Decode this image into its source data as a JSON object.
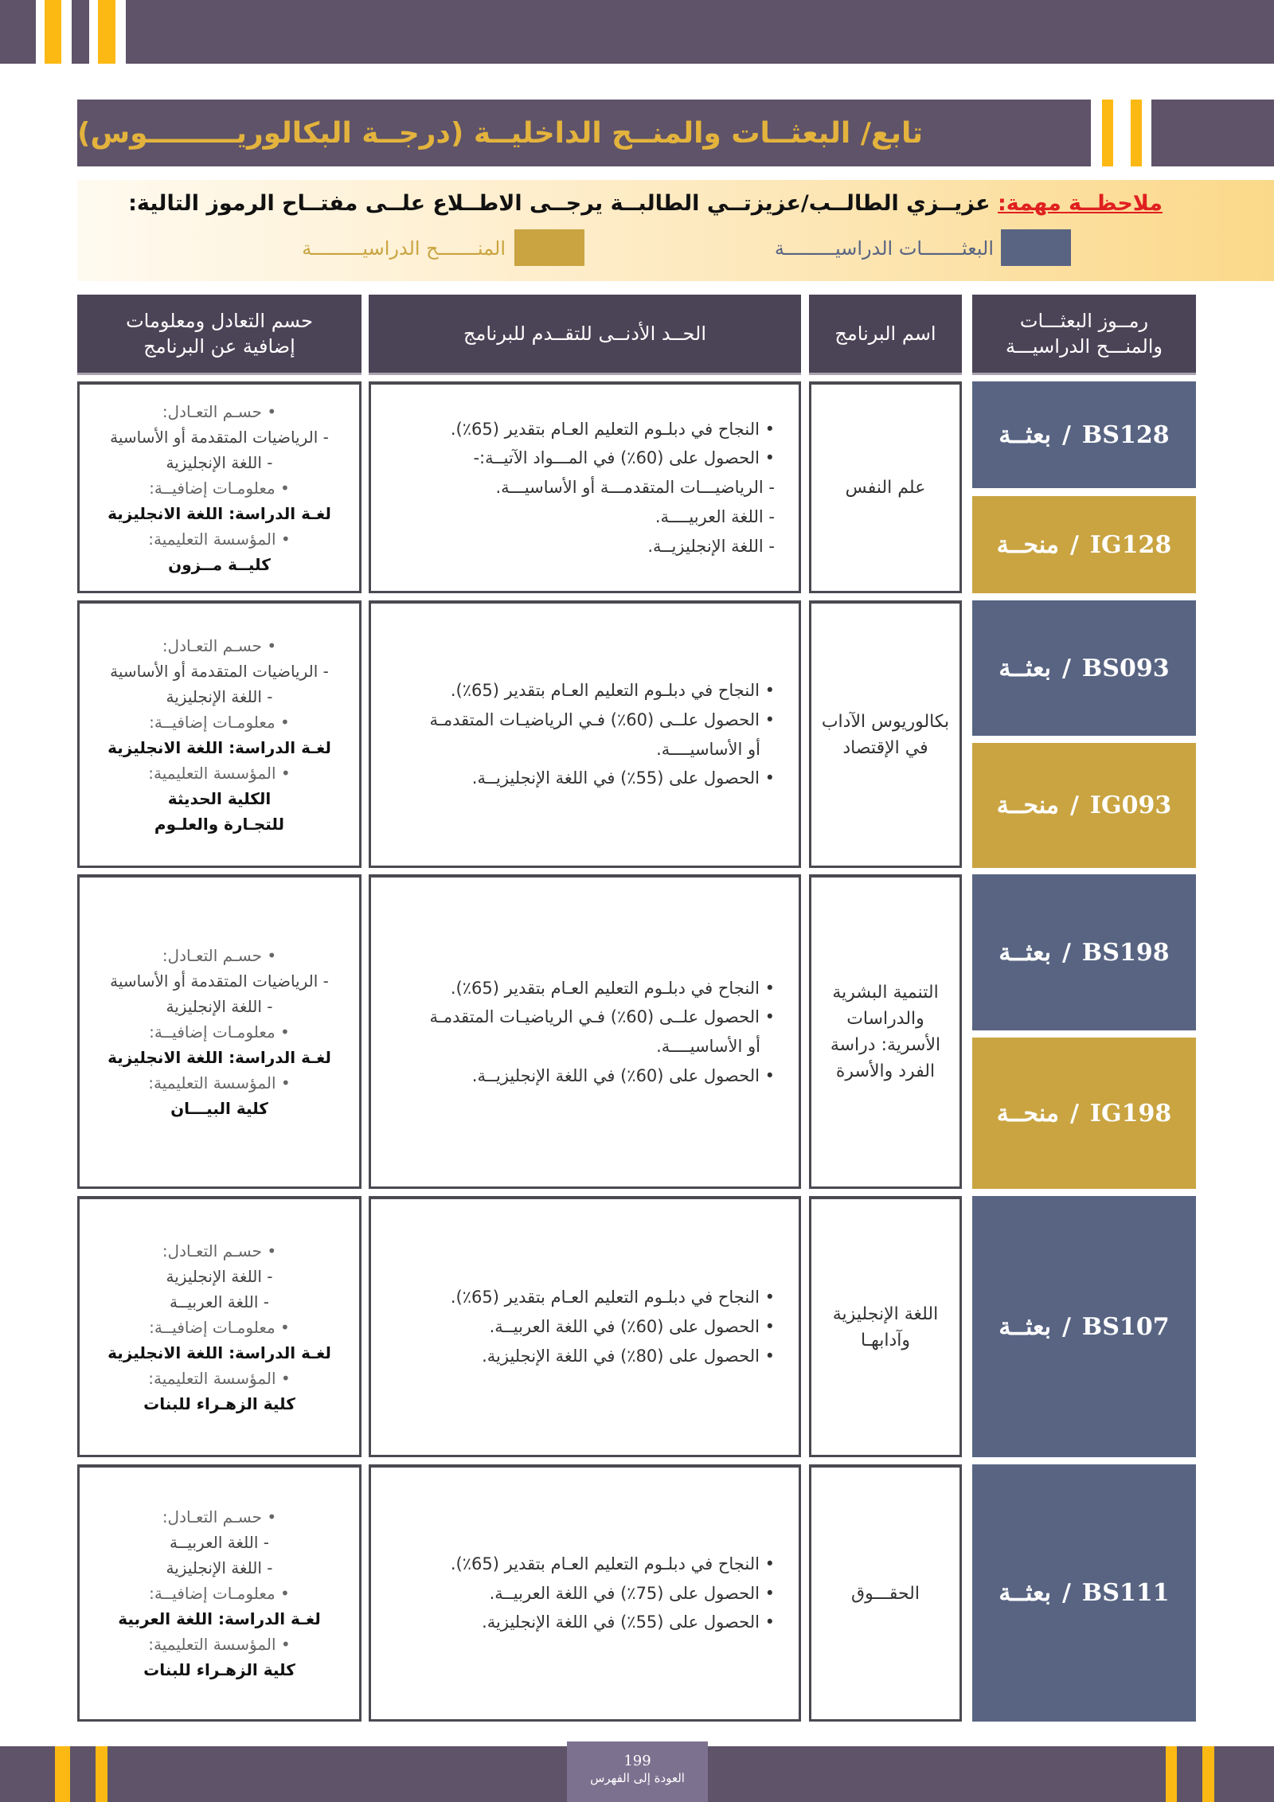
{
  "title": "تابع/ البعثــات والمنــح الداخليــة (درجــة البكالوريـــــــــوس)",
  "note": {
    "label": "ملاحظــة مهمة:",
    "text": "عزيــزي الطالــب/عزيزتــي الطالبــة يرجــى الاطــلاع علــى مفتــاح الرموز التالية:",
    "legend": [
      {
        "label": "البعثـــــــات الدراسيـــــــــة",
        "color": "#586482"
      },
      {
        "label": "المنـــــــح الدراسيـــــــــة",
        "color": "#c9a441"
      }
    ]
  },
  "colors": {
    "band": "#5e5368",
    "accent": "#fdb913",
    "scholarship": "#586482",
    "grant": "#c9a441"
  },
  "table": {
    "headers": {
      "codes": "رمــوز البعثـــات والمنـــح الدراسيـــة",
      "program": "اسم البرنامج",
      "requirements": "الحــد الأدنــى للتقــدم للبرنامج",
      "info": "حسم التعادل ومعلومات إضافية عن البرنامج"
    },
    "rows": [
      {
        "codes": [
          {
            "code": "BS128",
            "type": "بعثــة",
            "kind": "blue"
          },
          {
            "code": "IG128",
            "type": "منحــة",
            "kind": "gold"
          }
        ],
        "program": "علم النفس",
        "requirements": [
          "• النجاح في دبلـوم التعليم العـام بتقدير (65٪).",
          "• الحصول على (60٪)  في المـــواد الآتيــة:-",
          "- الرياضيـــات المتقدمـــة أو الأساسيـــة.",
          "- اللغة العربيــــة.",
          "- اللغة الإنجليزيــة."
        ],
        "info": [
          {
            "t": "• حسـم التعـادل:",
            "k": "h"
          },
          {
            "t": "- الرياضيات المتقدمة أو الأساسية",
            "k": "d"
          },
          {
            "t": "- اللغة الإنجليزية",
            "k": "d"
          },
          {
            "t": "• معلومـات إضافيــة:",
            "k": "h"
          },
          {
            "t": "لغـة الدراسة: اللغة الانجليزية",
            "k": "b"
          },
          {
            "t": "• المؤسسة التعليمية:",
            "k": "h"
          },
          {
            "t": "كليــة مــزون",
            "k": "b"
          }
        ]
      },
      {
        "codes": [
          {
            "code": "BS093",
            "type": "بعثــة",
            "kind": "blue"
          },
          {
            "code": "IG093",
            "type": "منحــة",
            "kind": "gold"
          }
        ],
        "program": "بكالوريوس الآداب في الإقتصاد",
        "requirements": [
          "• النجاح في دبلـوم التعليم العـام بتقدير (65٪).",
          "• الحصول علــى (60٪) فـي الرياضيـات المتقدمـة",
          "أو الأساسيــــة.",
          "• الحصول على (55٪) في اللغة الإنجليزيــة."
        ],
        "info": [
          {
            "t": "• حسـم التعـادل:",
            "k": "h"
          },
          {
            "t": "- الرياضيات المتقدمة أو الأساسية",
            "k": "d"
          },
          {
            "t": "- اللغة الإنجليزية",
            "k": "d"
          },
          {
            "t": "• معلومـات إضافيــة:",
            "k": "h"
          },
          {
            "t": "لغـة الدراسة: اللغة الانجليزية",
            "k": "b"
          },
          {
            "t": "• المؤسسة التعليمية:",
            "k": "h"
          },
          {
            "t": "الكلية الحديثة",
            "k": "b"
          },
          {
            "t": "للتجـارة والعلـوم",
            "k": "b"
          }
        ]
      },
      {
        "codes": [
          {
            "code": "BS198",
            "type": "بعثــة",
            "kind": "blue"
          },
          {
            "code": "IG198",
            "type": "منحــة",
            "kind": "gold"
          }
        ],
        "program": "التنمية البشرية والدراسات الأسرية: دراسة الفرد والأسرة",
        "requirements": [
          "• النجاح في دبلـوم التعليم العـام بتقدير (65٪).",
          "• الحصول علــى (60٪) فـي الرياضيـات المتقدمـة",
          "أو الأساسيــــة.",
          "• الحصول على (60٪) في اللغة الإنجليزيــة."
        ],
        "info": [
          {
            "t": "• حسـم التعـادل:",
            "k": "h"
          },
          {
            "t": "- الرياضيات المتقدمة أو الأساسية",
            "k": "d"
          },
          {
            "t": "- اللغة الإنجليزية",
            "k": "d"
          },
          {
            "t": "• معلومـات إضافيــة:",
            "k": "h"
          },
          {
            "t": "لغـة الدراسة: اللغة الانجليزية",
            "k": "b"
          },
          {
            "t": "• المؤسسة التعليمية:",
            "k": "h"
          },
          {
            "t": "كلية البيـــان",
            "k": "b"
          }
        ]
      },
      {
        "codes": [
          {
            "code": "BS107",
            "type": "بعثــة",
            "kind": "blue"
          }
        ],
        "program": "اللغة الإنجليزية وآدابهـا",
        "requirements": [
          "• النجاح في دبلـوم التعليم العـام بتقدير (65٪).",
          "• الحصول على (60٪) في اللغة العربيــة.",
          "• الحصول على (80٪) في اللغة الإنجليزية."
        ],
        "info": [
          {
            "t": "• حسـم التعـادل:",
            "k": "h"
          },
          {
            "t": "- اللغة الإنجليزية",
            "k": "d"
          },
          {
            "t": "- اللغة العربيــة",
            "k": "d"
          },
          {
            "t": "• معلومـات إضافيــة:",
            "k": "h"
          },
          {
            "t": "لغـة الدراسة: اللغة الانجليزية",
            "k": "b"
          },
          {
            "t": "• المؤسسة التعليمية:",
            "k": "h"
          },
          {
            "t": "كلية الزهـراء للبنات",
            "k": "b"
          }
        ]
      },
      {
        "codes": [
          {
            "code": "BS111",
            "type": "بعثــة",
            "kind": "blue"
          }
        ],
        "program": "الحقـــوق",
        "requirements": [
          "• النجاح في دبلـوم التعليم العـام بتقدير (65٪).",
          "• الحصول على (75٪) في اللغة العربيــة.",
          "• الحصول على (55٪) في اللغة الإنجليزية."
        ],
        "info": [
          {
            "t": "• حسـم التعـادل:",
            "k": "h"
          },
          {
            "t": "- اللغة العربيــة",
            "k": "d"
          },
          {
            "t": "- اللغة الإنجليزية",
            "k": "d"
          },
          {
            "t": "• معلومـات إضافيــة:",
            "k": "h"
          },
          {
            "t": "لغـة الدراسة: اللغة العربية",
            "k": "b"
          },
          {
            "t": "• المؤسسة التعليمية:",
            "k": "h"
          },
          {
            "t": "كلية الزهـراء للبنات",
            "k": "b"
          }
        ]
      }
    ]
  },
  "footer": {
    "page_number": "199",
    "back_link": "العودة إلى الفهرس"
  }
}
